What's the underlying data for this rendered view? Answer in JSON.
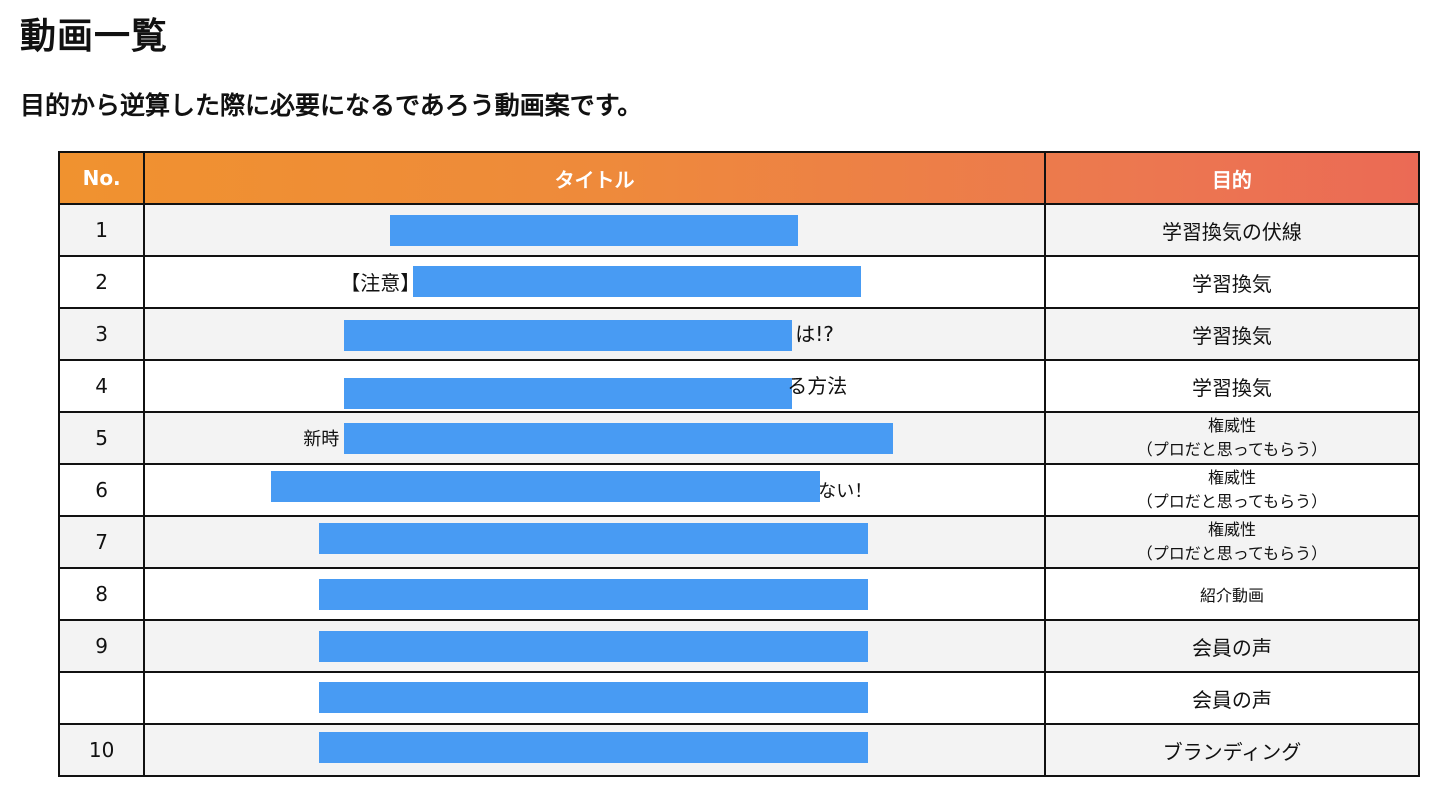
{
  "heading": "動画一覧",
  "subheading": "目的から逆算した際に必要になるであろう動画案です。",
  "table": {
    "headers": {
      "no": "No.",
      "title": "タイトル",
      "purpose": "目的"
    },
    "rows": [
      {
        "no": "1",
        "title_visible": "",
        "purpose_line1": "学習換気の伏線",
        "purpose_line2": ""
      },
      {
        "no": "2",
        "title_visible": "【注意】",
        "purpose_line1": "学習換気",
        "purpose_line2": ""
      },
      {
        "no": "3",
        "title_visible": "は!?",
        "purpose_line1": "学習換気",
        "purpose_line2": ""
      },
      {
        "no": "4",
        "title_visible": "る方法",
        "purpose_line1": "学習換気",
        "purpose_line2": ""
      },
      {
        "no": "5",
        "title_visible": "新時",
        "purpose_line1": "権威性",
        "purpose_line2": "（プロだと思ってもらう）"
      },
      {
        "no": "6",
        "title_visible": "ない！",
        "purpose_line1": "権威性",
        "purpose_line2": "（プロだと思ってもらう）"
      },
      {
        "no": "7",
        "title_visible": "",
        "purpose_line1": "権威性",
        "purpose_line2": "（プロだと思ってもらう）"
      },
      {
        "no": "8",
        "title_visible": "",
        "purpose_line1": "紹介動画",
        "purpose_line2": ""
      },
      {
        "no": "9",
        "title_visible": "",
        "purpose_line1": "会員の声",
        "purpose_line2": ""
      },
      {
        "no": "",
        "title_visible": "",
        "purpose_line1": "会員の声",
        "purpose_line2": ""
      },
      {
        "no": "10",
        "title_visible": "",
        "purpose_line1": "ブランディング",
        "purpose_line2": ""
      }
    ]
  },
  "colors": {
    "header_gradient_start": "#f0922f",
    "header_gradient_end": "#eb6a55",
    "redaction": "#489bf3",
    "row_alt": "#f3f3f3"
  }
}
